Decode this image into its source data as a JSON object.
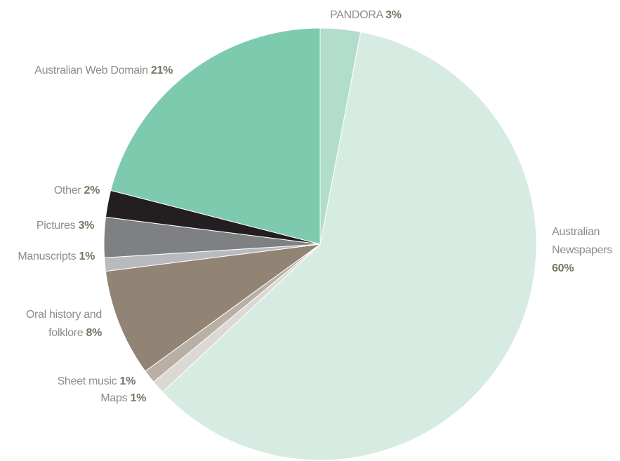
{
  "chart_data": {
    "type": "pie",
    "categories": [
      "PANDORA",
      "Australian Newspapers",
      "Maps",
      "Sheet music",
      "Oral history and folklore",
      "Manuscripts",
      "Pictures",
      "Other",
      "Australian Web Domain"
    ],
    "values": [
      3,
      60,
      1,
      1,
      8,
      1,
      3,
      2,
      21
    ],
    "value_labels": [
      "3%",
      "60%",
      "1%",
      "1%",
      "8%",
      "1%",
      "3%",
      "2%",
      "21%"
    ],
    "colors": [
      "#b2dccb",
      "#d6ece3",
      "#dcd8d3",
      "#b9b0a5",
      "#918475",
      "#b8babd",
      "#7f8083",
      "#231f20",
      "#7ecaae"
    ]
  }
}
